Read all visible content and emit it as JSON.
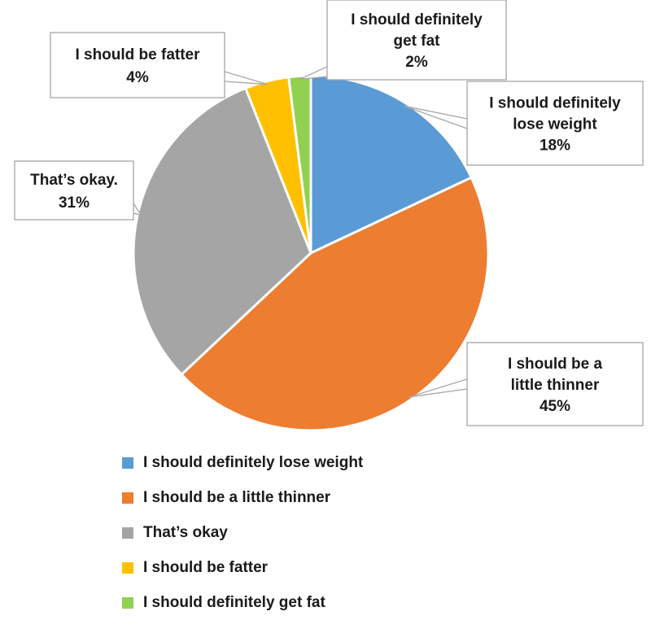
{
  "chart_data": {
    "type": "pie",
    "slices": [
      {
        "name": "I should definitely lose weight",
        "value": 18,
        "label": [
          "I should definitely",
          "lose weight",
          "18%"
        ],
        "color": "#5b9bd5"
      },
      {
        "name": "I should be a little thinner",
        "value": 45,
        "label": [
          "I should be a",
          "little thinner",
          "45%"
        ],
        "color": "#ed7d31"
      },
      {
        "name": "That’s okay",
        "value": 31,
        "label": [
          "That’s okay.",
          "31%"
        ],
        "color": "#a5a5a5"
      },
      {
        "name": "I should be fatter",
        "value": 4,
        "label": [
          "I should be fatter",
          "4%"
        ],
        "color": "#ffc000"
      },
      {
        "name": "I should definitely get fat",
        "value": 2,
        "label": [
          "I should definitely",
          "get fat",
          "2%"
        ],
        "color": "#92d050"
      }
    ],
    "legend_position": "bottom"
  }
}
